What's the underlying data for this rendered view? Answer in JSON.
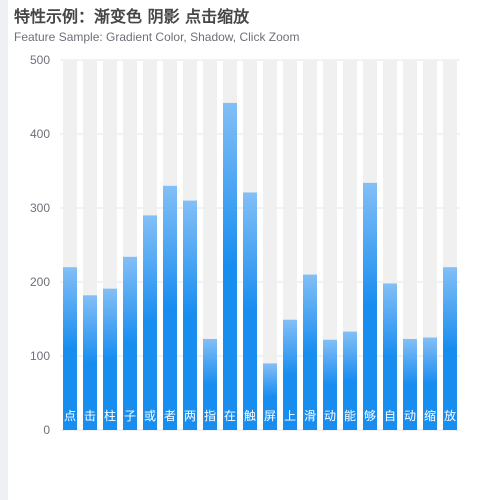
{
  "title": "特性示例：渐变色 阴影 点击缩放",
  "subtitle": "Feature Sample: Gradient Color, Shadow, Click Zoom",
  "chart_data": {
    "type": "bar",
    "categories": [
      "点",
      "击",
      "柱",
      "子",
      "或",
      "者",
      "两",
      "指",
      "在",
      "触",
      "屏",
      "上",
      "滑",
      "动",
      "能",
      "够",
      "自",
      "动",
      "缩",
      "放"
    ],
    "values": [
      220,
      182,
      191,
      234,
      290,
      330,
      310,
      123,
      442,
      321,
      90,
      149,
      210,
      122,
      133,
      334,
      198,
      123,
      125,
      220
    ],
    "ylim": [
      0,
      500
    ],
    "yticks": [
      0,
      100,
      200,
      300,
      400,
      500
    ],
    "grid": true,
    "shadow_max": 500,
    "colors": {
      "gradient_top": "#83bff6",
      "gradient_mid": "#188df0",
      "gradient_bottom": "#188df0",
      "shadow": "#f0f0f0",
      "grid": "#e0e6f1",
      "axis_text": "#6e7079",
      "bar_label": "#ffffff"
    }
  }
}
